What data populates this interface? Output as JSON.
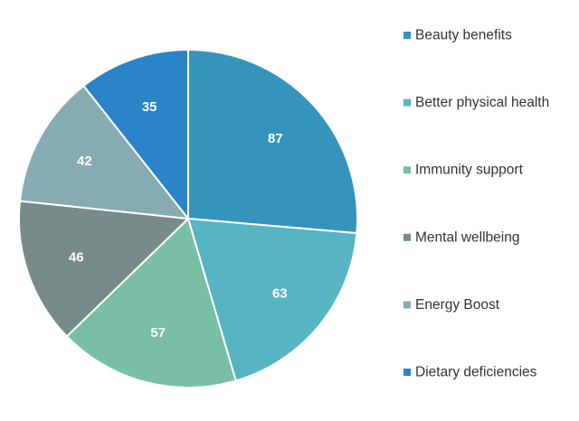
{
  "chart_data": {
    "type": "pie",
    "categories": [
      "Beauty benefits",
      "Better physical health",
      "Immunity support",
      "Mental wellbeing",
      "Energy Boost",
      "Dietary deficiencies"
    ],
    "values": [
      87,
      63,
      57,
      46,
      42,
      35
    ],
    "colors": [
      "#3594bb",
      "#57b4c2",
      "#78bfa5",
      "#778b8a",
      "#86abb3",
      "#2b83c8"
    ],
    "legend_position": "right",
    "data_labels": true
  }
}
